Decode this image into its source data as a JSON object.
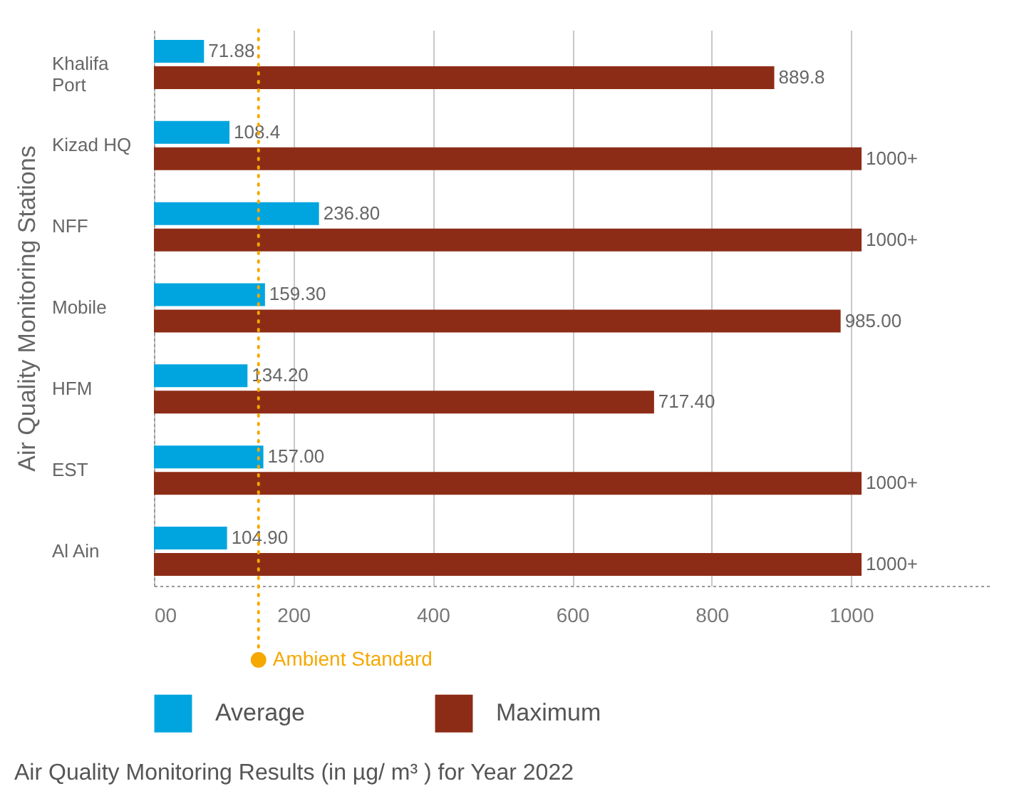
{
  "chart_data": {
    "type": "bar",
    "orientation": "horizontal",
    "title": "Air Quality Monitoring Results (in µg/ m³ ) for Year 2022",
    "ylabel": "Air Quality Monitoring Stations",
    "categories": [
      "Khalifa Port",
      "Kizad HQ",
      "NFF",
      "Mobile",
      "HFM",
      "EST",
      "Al Ain"
    ],
    "series": [
      {
        "name": "Average",
        "color": "#00a5df",
        "values": [
          71.88,
          108.4,
          236.8,
          159.3,
          134.2,
          157.0,
          104.9
        ],
        "value_labels": [
          "71.88",
          "108.4",
          "236.80",
          "159.30",
          "134.20",
          "157.00",
          "104.90"
        ]
      },
      {
        "name": "Maximum",
        "color": "#8d2c16",
        "values": [
          889.8,
          1015,
          1015,
          985.0,
          717.4,
          1015,
          1015
        ],
        "value_labels": [
          "889.8",
          "1000+",
          "1000+",
          "985.00",
          "717.40",
          "1000+",
          "1000+"
        ]
      }
    ],
    "xlim": [
      0,
      1200
    ],
    "xticks": [
      {
        "value": 0,
        "label": "00"
      },
      200,
      400,
      600,
      800,
      1000
    ],
    "ref_lines": [
      {
        "axis": "x",
        "value": 150,
        "label": "Ambient Standard",
        "color": "#f5a800",
        "line_style": "dotted"
      }
    ],
    "grid": "x",
    "legend": "bottom"
  }
}
